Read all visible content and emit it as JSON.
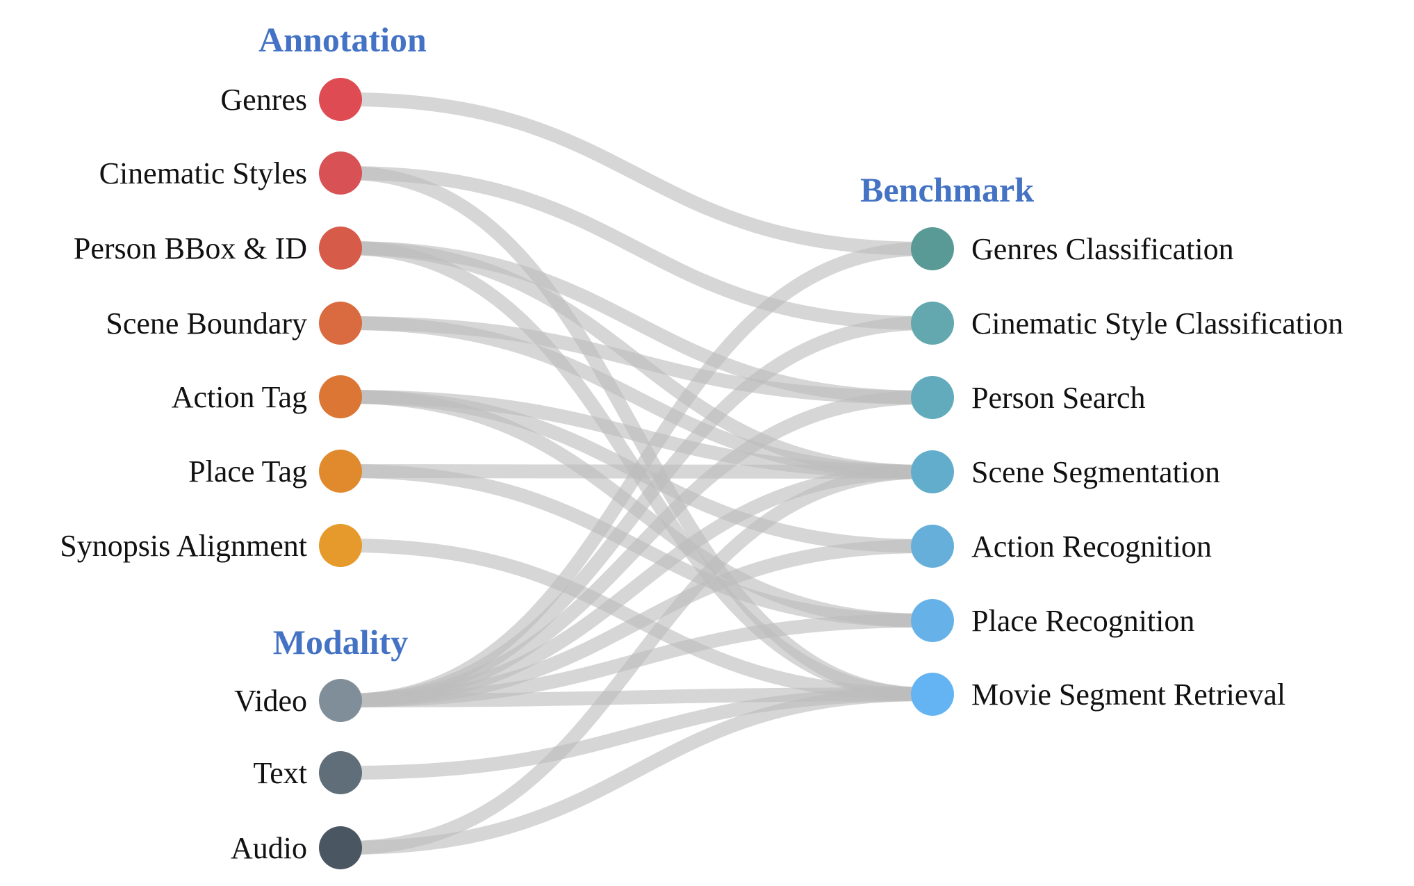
{
  "headings": {
    "annotation": "Annotation",
    "modality": "Modality",
    "benchmark": "Benchmark"
  },
  "title_color": "#4472c4",
  "link_color": "#bdbdbd",
  "annotation": [
    {
      "id": "genres",
      "label": "Genres",
      "color": "#de4b53"
    },
    {
      "id": "cinematic_styles",
      "label": "Cinematic Styles",
      "color": "#d75155"
    },
    {
      "id": "person_bbox_id",
      "label": "Person BBox & ID",
      "color": "#d65b48"
    },
    {
      "id": "scene_boundary",
      "label": "Scene Boundary",
      "color": "#da6a3f"
    },
    {
      "id": "action_tag",
      "label": "Action Tag",
      "color": "#dc7634"
    },
    {
      "id": "place_tag",
      "label": "Place Tag",
      "color": "#e08a2d"
    },
    {
      "id": "synopsis_alignment",
      "label": "Synopsis Alignment",
      "color": "#e59a2b"
    }
  ],
  "modality": [
    {
      "id": "video",
      "label": "Video",
      "color": "#7f8e98"
    },
    {
      "id": "text",
      "label": "Text",
      "color": "#5f6e79"
    },
    {
      "id": "audio",
      "label": "Audio",
      "color": "#4a5662"
    }
  ],
  "benchmark": [
    {
      "id": "genres_classification",
      "label": "Genres Classification",
      "color": "#5a9a96"
    },
    {
      "id": "cinematic_style_classification",
      "label": "Cinematic Style Classification",
      "color": "#63a8ae"
    },
    {
      "id": "person_search",
      "label": "Person Search",
      "color": "#62abbd"
    },
    {
      "id": "scene_segmentation",
      "label": "Scene Segmentation",
      "color": "#62adcb"
    },
    {
      "id": "action_recognition",
      "label": "Action Recognition",
      "color": "#66afdb"
    },
    {
      "id": "place_recognition",
      "label": "Place Recognition",
      "color": "#66b2e8"
    },
    {
      "id": "movie_segment_retrieval",
      "label": "Movie Segment Retrieval",
      "color": "#64b4f3"
    }
  ],
  "links": [
    [
      "genres",
      "genres_classification"
    ],
    [
      "cinematic_styles",
      "cinematic_style_classification"
    ],
    [
      "cinematic_styles",
      "movie_segment_retrieval"
    ],
    [
      "person_bbox_id",
      "person_search"
    ],
    [
      "person_bbox_id",
      "scene_segmentation"
    ],
    [
      "person_bbox_id",
      "movie_segment_retrieval"
    ],
    [
      "scene_boundary",
      "person_search"
    ],
    [
      "scene_boundary",
      "scene_segmentation"
    ],
    [
      "action_tag",
      "scene_segmentation"
    ],
    [
      "action_tag",
      "action_recognition"
    ],
    [
      "action_tag",
      "place_recognition"
    ],
    [
      "place_tag",
      "scene_segmentation"
    ],
    [
      "place_tag",
      "place_recognition"
    ],
    [
      "synopsis_alignment",
      "movie_segment_retrieval"
    ],
    [
      "video",
      "genres_classification"
    ],
    [
      "video",
      "cinematic_style_classification"
    ],
    [
      "video",
      "person_search"
    ],
    [
      "video",
      "scene_segmentation"
    ],
    [
      "video",
      "action_recognition"
    ],
    [
      "video",
      "place_recognition"
    ],
    [
      "video",
      "movie_segment_retrieval"
    ],
    [
      "text",
      "movie_segment_retrieval"
    ],
    [
      "audio",
      "scene_segmentation"
    ],
    [
      "audio",
      "movie_segment_retrieval"
    ]
  ]
}
